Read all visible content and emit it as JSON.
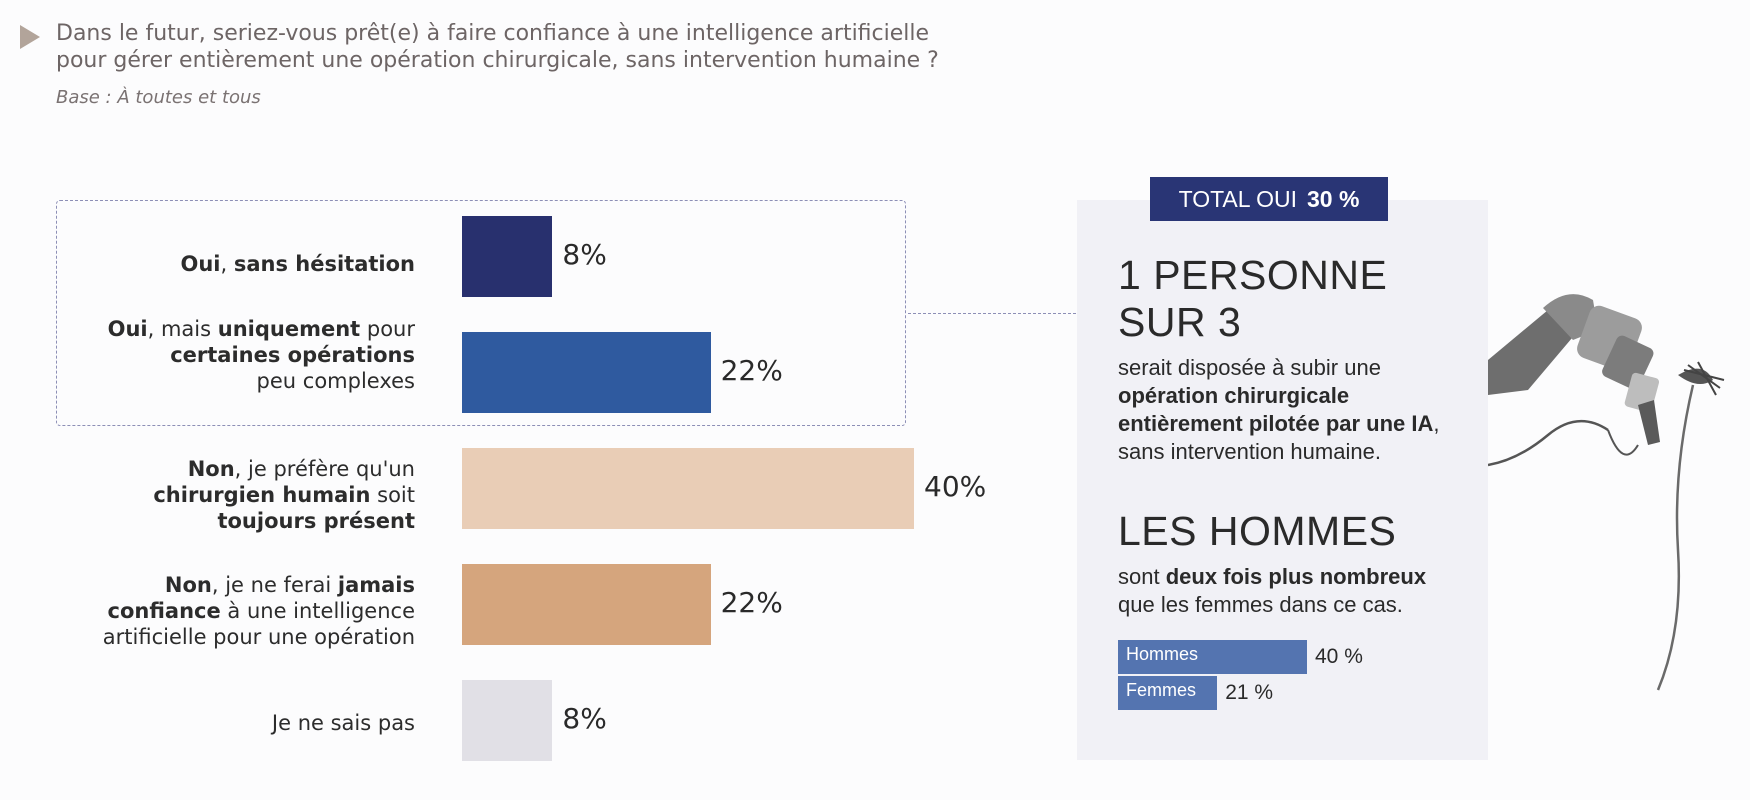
{
  "header": {
    "question_line1": "Dans le futur, seriez-vous prêt(e) à faire confiance à une intelligence artificielle",
    "question_line2": "pour gérer entièrement une opération chirurgicale, sans intervention humaine ?",
    "base": "Base : À toutes et tous"
  },
  "chart_data": {
    "type": "bar",
    "orientation": "horizontal",
    "categories": [
      "Oui, sans hésitation",
      "Oui, mais uniquement pour certaines opérations peu complexes",
      "Non, je préfère qu'un chirurgien humain soit toujours présent",
      "Non, je ne ferai jamais confiance à une intelligence artificielle pour une opération",
      "Je ne sais pas"
    ],
    "values": [
      8,
      22,
      40,
      22,
      8
    ],
    "value_labels": [
      "8%",
      "22%",
      "40%",
      "22%",
      "8%"
    ],
    "colors": [
      "#28306e",
      "#2f5a9f",
      "#e9cdb6",
      "#d5a57d",
      "#e1e0e6"
    ],
    "xlim": [
      0,
      40
    ]
  },
  "labels": {
    "row1": {
      "a": "Oui",
      "b": ", ",
      "c": "sans hésitation"
    },
    "row2": {
      "a": "Oui",
      "b": ", mais ",
      "c": "uniquement",
      "d": " pour",
      "e": "certaines opérations",
      "f": "peu complexes"
    },
    "row3": {
      "a": "Non",
      "b": ", je préfère qu'un",
      "c": "chirurgien humain",
      "d": " soit",
      "e": "toujours présent"
    },
    "row4": {
      "a": "Non",
      "b": ", je ne ferai ",
      "c": "jamais",
      "d": "confiance",
      "e": " à une intelligence",
      "f": "artificielle pour une opération"
    },
    "row5": {
      "a": "Je ne sais pas"
    }
  },
  "panel": {
    "total_label": "TOTAL OUI",
    "total_value": "30 %",
    "headline1_line1": "1 PERSONNE",
    "headline1_line2": "SUR 3",
    "text1_a": "serait disposée à subir une",
    "text1_b": "opération chirurgicale entièrement pilotée par une IA",
    "text1_c": ", sans intervention humaine.",
    "headline2": "LES HOMMES",
    "text2_a": "sont ",
    "text2_b": "deux fois plus nombreux",
    "text2_c": "que les femmes dans ce cas.",
    "gender": [
      {
        "label": "Hommes",
        "value": 40,
        "value_label": "40 %"
      },
      {
        "label": "Femmes",
        "value": 21,
        "value_label": "21 %"
      }
    ]
  }
}
